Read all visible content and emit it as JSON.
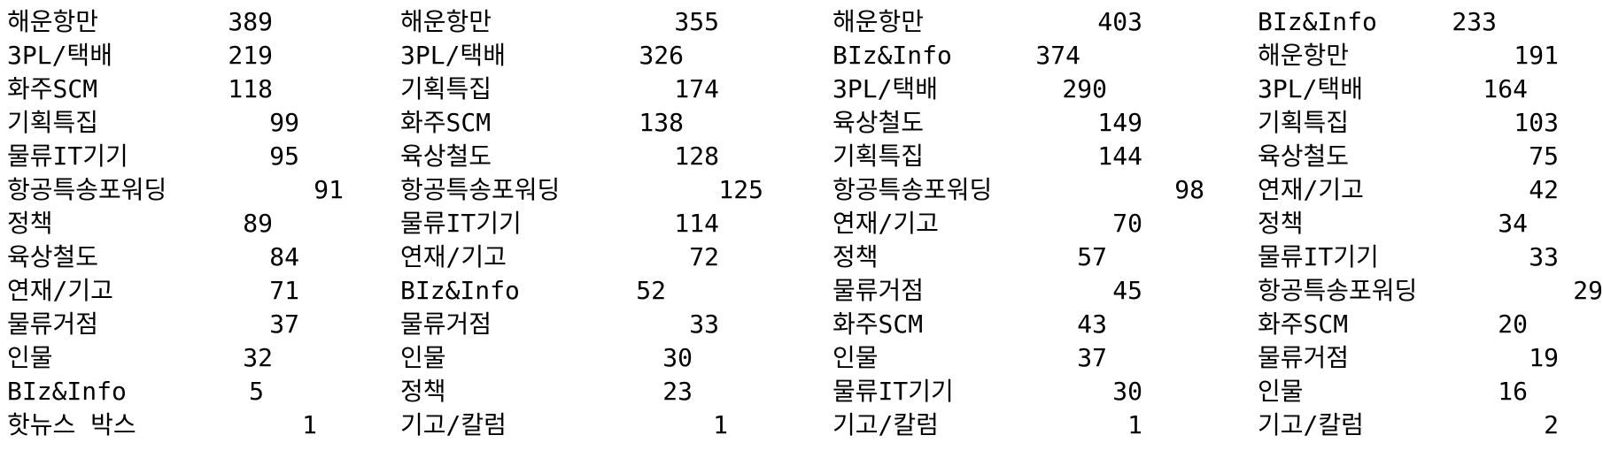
{
  "columns": [
    {
      "rows": [
        {
          "label": "해운항만",
          "count": "389"
        },
        {
          "label": "3PL/택배",
          "count": "219"
        },
        {
          "label": "화주SCM",
          "count": "118"
        },
        {
          "label": "기획특집",
          "count": "99"
        },
        {
          "label": "물류IT기기",
          "count": "95"
        },
        {
          "label": "항공특송포워딩",
          "count": "91"
        },
        {
          "label": "정책",
          "count": "89"
        },
        {
          "label": "육상철도",
          "count": "84"
        },
        {
          "label": "연재/기고",
          "count": "71"
        },
        {
          "label": "물류거점",
          "count": "37"
        },
        {
          "label": "인물",
          "count": "32"
        },
        {
          "label": "BIz&Info",
          "count": "5"
        },
        {
          "label": "핫뉴스 박스",
          "count": "1"
        }
      ]
    },
    {
      "rows": [
        {
          "label": "해운항만",
          "count": "355"
        },
        {
          "label": "3PL/택배",
          "count": "326"
        },
        {
          "label": "기획특집",
          "count": "174"
        },
        {
          "label": "화주SCM",
          "count": "138"
        },
        {
          "label": "육상철도",
          "count": "128"
        },
        {
          "label": "항공특송포워딩",
          "count": "125"
        },
        {
          "label": "물류IT기기",
          "count": "114"
        },
        {
          "label": "연재/기고",
          "count": "72"
        },
        {
          "label": "BIz&Info",
          "count": "52"
        },
        {
          "label": "물류거점",
          "count": "33"
        },
        {
          "label": "인물",
          "count": "30"
        },
        {
          "label": "정책",
          "count": "23"
        },
        {
          "label": "기고/칼럼",
          "count": "1"
        }
      ]
    },
    {
      "rows": [
        {
          "label": "해운항만",
          "count": "403"
        },
        {
          "label": "BIz&Info",
          "count": "374"
        },
        {
          "label": "3PL/택배",
          "count": "290"
        },
        {
          "label": "육상철도",
          "count": "149"
        },
        {
          "label": "기획특집",
          "count": "144"
        },
        {
          "label": "항공특송포워딩",
          "count": "98"
        },
        {
          "label": "연재/기고",
          "count": "70"
        },
        {
          "label": "정책",
          "count": "57"
        },
        {
          "label": "물류거점",
          "count": "45"
        },
        {
          "label": "화주SCM",
          "count": "43"
        },
        {
          "label": "인물",
          "count": "37"
        },
        {
          "label": "물류IT기기",
          "count": "30"
        },
        {
          "label": "기고/칼럼",
          "count": "1"
        }
      ]
    },
    {
      "rows": [
        {
          "label": "BIz&Info",
          "count": "233"
        },
        {
          "label": "해운항만",
          "count": "191"
        },
        {
          "label": "3PL/택배",
          "count": "164"
        },
        {
          "label": "기획특집",
          "count": "103"
        },
        {
          "label": "육상철도",
          "count": "75"
        },
        {
          "label": "연재/기고",
          "count": "42"
        },
        {
          "label": "정책",
          "count": "34"
        },
        {
          "label": "물류IT기기",
          "count": "33"
        },
        {
          "label": "항공특송포워딩",
          "count": "29"
        },
        {
          "label": "화주SCM",
          "count": "20"
        },
        {
          "label": "물류거점",
          "count": "19"
        },
        {
          "label": "인물",
          "count": "16"
        },
        {
          "label": "기고/칼럼",
          "count": "2"
        }
      ]
    }
  ]
}
